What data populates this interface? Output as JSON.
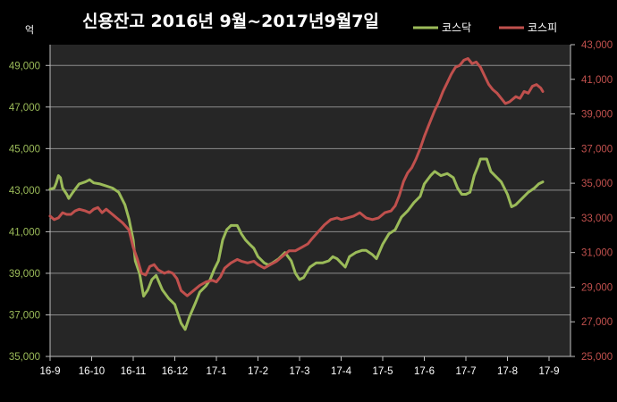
{
  "title": "신용잔고  2016년 9월~2017년9월7일",
  "chart_data": {
    "type": "line",
    "title": "신용잔고  2016년 9월~2017년9월7일",
    "unit_label": "억",
    "x_labels": [
      "16-9",
      "16-10",
      "16-11",
      "16-12",
      "17-1",
      "17-2",
      "17-3",
      "17-4",
      "17-5",
      "17-6",
      "17-7",
      "17-8",
      "17-9"
    ],
    "y_left": {
      "ticks": [
        "35,000",
        "37,000",
        "39,000",
        "41,000",
        "43,000",
        "45,000",
        "47,000",
        "49,000"
      ],
      "min": 35000,
      "max": 50000
    },
    "y_right": {
      "ticks": [
        "25,000",
        "27,000",
        "29,000",
        "31,000",
        "33,000",
        "35,000",
        "37,000",
        "39,000",
        "41,000",
        "43,000"
      ],
      "min": 25000,
      "max": 43000
    },
    "gridlines": true,
    "legend_position": "top-right",
    "series": [
      {
        "name": "코스닥",
        "axis": "left",
        "color": "#9bbb59",
        "points": [
          [
            0,
            43050
          ],
          [
            0.1,
            43100
          ],
          [
            0.15,
            43350
          ],
          [
            0.2,
            43700
          ],
          [
            0.25,
            43600
          ],
          [
            0.3,
            43100
          ],
          [
            0.4,
            42800
          ],
          [
            0.45,
            42600
          ],
          [
            0.55,
            42900
          ],
          [
            0.7,
            43300
          ],
          [
            0.85,
            43400
          ],
          [
            0.95,
            43500
          ],
          [
            1.05,
            43350
          ],
          [
            1.2,
            43300
          ],
          [
            1.35,
            43200
          ],
          [
            1.5,
            43100
          ],
          [
            1.65,
            42900
          ],
          [
            1.8,
            42300
          ],
          [
            1.9,
            41600
          ],
          [
            2.0,
            40600
          ],
          [
            2.05,
            39600
          ],
          [
            2.15,
            39000
          ],
          [
            2.25,
            37900
          ],
          [
            2.35,
            38200
          ],
          [
            2.45,
            38700
          ],
          [
            2.55,
            38900
          ],
          [
            2.7,
            38200
          ],
          [
            2.85,
            37800
          ],
          [
            3.0,
            37500
          ],
          [
            3.05,
            37200
          ],
          [
            3.15,
            36600
          ],
          [
            3.25,
            36300
          ],
          [
            3.35,
            36900
          ],
          [
            3.5,
            37600
          ],
          [
            3.6,
            38100
          ],
          [
            3.75,
            38400
          ],
          [
            3.85,
            38700
          ],
          [
            3.95,
            39200
          ],
          [
            4.05,
            39600
          ],
          [
            4.15,
            40600
          ],
          [
            4.25,
            41100
          ],
          [
            4.35,
            41300
          ],
          [
            4.5,
            41300
          ],
          [
            4.6,
            40900
          ],
          [
            4.7,
            40600
          ],
          [
            4.8,
            40400
          ],
          [
            4.9,
            40200
          ],
          [
            5.0,
            39800
          ],
          [
            5.15,
            39500
          ],
          [
            5.25,
            39400
          ],
          [
            5.35,
            39500
          ],
          [
            5.5,
            39700
          ],
          [
            5.65,
            40000
          ],
          [
            5.8,
            39600
          ],
          [
            5.9,
            39000
          ],
          [
            6.0,
            38700
          ],
          [
            6.1,
            38800
          ],
          [
            6.25,
            39300
          ],
          [
            6.4,
            39500
          ],
          [
            6.55,
            39500
          ],
          [
            6.7,
            39600
          ],
          [
            6.8,
            39800
          ],
          [
            6.9,
            39700
          ],
          [
            7.0,
            39500
          ],
          [
            7.1,
            39300
          ],
          [
            7.2,
            39800
          ],
          [
            7.35,
            40000
          ],
          [
            7.5,
            40100
          ],
          [
            7.6,
            40100
          ],
          [
            7.75,
            39900
          ],
          [
            7.85,
            39700
          ],
          [
            8.0,
            40400
          ],
          [
            8.15,
            40900
          ],
          [
            8.3,
            41100
          ],
          [
            8.45,
            41700
          ],
          [
            8.6,
            42000
          ],
          [
            8.75,
            42400
          ],
          [
            8.9,
            42700
          ],
          [
            9.0,
            43300
          ],
          [
            9.15,
            43700
          ],
          [
            9.25,
            43900
          ],
          [
            9.4,
            43700
          ],
          [
            9.55,
            43800
          ],
          [
            9.7,
            43600
          ],
          [
            9.8,
            43100
          ],
          [
            9.9,
            42800
          ],
          [
            10.0,
            42800
          ],
          [
            10.1,
            42900
          ],
          [
            10.2,
            43700
          ],
          [
            10.3,
            44200
          ],
          [
            10.35,
            44500
          ],
          [
            10.5,
            44500
          ],
          [
            10.6,
            43900
          ],
          [
            10.7,
            43700
          ],
          [
            10.85,
            43400
          ],
          [
            11.0,
            42800
          ],
          [
            11.1,
            42200
          ],
          [
            11.2,
            42300
          ],
          [
            11.35,
            42600
          ],
          [
            11.5,
            42900
          ],
          [
            11.65,
            43100
          ],
          [
            11.75,
            43300
          ],
          [
            11.85,
            43400
          ]
        ]
      },
      {
        "name": "코스피",
        "axis": "right",
        "color": "#c0504d",
        "points": [
          [
            0,
            33100
          ],
          [
            0.1,
            32900
          ],
          [
            0.2,
            33000
          ],
          [
            0.3,
            33300
          ],
          [
            0.4,
            33200
          ],
          [
            0.5,
            33200
          ],
          [
            0.6,
            33400
          ],
          [
            0.7,
            33500
          ],
          [
            0.85,
            33400
          ],
          [
            0.95,
            33300
          ],
          [
            1.05,
            33500
          ],
          [
            1.15,
            33600
          ],
          [
            1.25,
            33300
          ],
          [
            1.35,
            33500
          ],
          [
            1.5,
            33200
          ],
          [
            1.6,
            33000
          ],
          [
            1.75,
            32700
          ],
          [
            1.9,
            32300
          ],
          [
            2.0,
            31300
          ],
          [
            2.1,
            30600
          ],
          [
            2.2,
            29800
          ],
          [
            2.3,
            29700
          ],
          [
            2.4,
            30200
          ],
          [
            2.5,
            30300
          ],
          [
            2.6,
            30000
          ],
          [
            2.75,
            29800
          ],
          [
            2.85,
            29900
          ],
          [
            2.95,
            29800
          ],
          [
            3.05,
            29500
          ],
          [
            3.15,
            28800
          ],
          [
            3.3,
            28500
          ],
          [
            3.45,
            28800
          ],
          [
            3.6,
            29100
          ],
          [
            3.75,
            29300
          ],
          [
            3.9,
            29400
          ],
          [
            4.0,
            29300
          ],
          [
            4.1,
            29600
          ],
          [
            4.2,
            30100
          ],
          [
            4.35,
            30400
          ],
          [
            4.5,
            30600
          ],
          [
            4.6,
            30500
          ],
          [
            4.75,
            30400
          ],
          [
            4.9,
            30500
          ],
          [
            5.0,
            30300
          ],
          [
            5.15,
            30100
          ],
          [
            5.3,
            30300
          ],
          [
            5.45,
            30500
          ],
          [
            5.6,
            30800
          ],
          [
            5.75,
            31100
          ],
          [
            5.9,
            31100
          ],
          [
            6.05,
            31300
          ],
          [
            6.2,
            31500
          ],
          [
            6.3,
            31800
          ],
          [
            6.45,
            32200
          ],
          [
            6.6,
            32600
          ],
          [
            6.75,
            32900
          ],
          [
            6.9,
            33000
          ],
          [
            7.0,
            32900
          ],
          [
            7.15,
            33000
          ],
          [
            7.3,
            33100
          ],
          [
            7.45,
            33300
          ],
          [
            7.6,
            33000
          ],
          [
            7.75,
            32900
          ],
          [
            7.9,
            33000
          ],
          [
            8.05,
            33300
          ],
          [
            8.2,
            33400
          ],
          [
            8.3,
            33700
          ],
          [
            8.4,
            34300
          ],
          [
            8.5,
            35100
          ],
          [
            8.6,
            35600
          ],
          [
            8.7,
            35900
          ],
          [
            8.8,
            36400
          ],
          [
            8.9,
            37000
          ],
          [
            9.0,
            37700
          ],
          [
            9.1,
            38300
          ],
          [
            9.25,
            39200
          ],
          [
            9.35,
            39700
          ],
          [
            9.45,
            40300
          ],
          [
            9.55,
            40800
          ],
          [
            9.65,
            41300
          ],
          [
            9.75,
            41700
          ],
          [
            9.85,
            41800
          ],
          [
            9.95,
            42100
          ],
          [
            10.05,
            42200
          ],
          [
            10.15,
            41900
          ],
          [
            10.25,
            42000
          ],
          [
            10.35,
            41700
          ],
          [
            10.45,
            41200
          ],
          [
            10.55,
            40700
          ],
          [
            10.65,
            40400
          ],
          [
            10.75,
            40200
          ],
          [
            10.85,
            39900
          ],
          [
            10.95,
            39600
          ],
          [
            11.05,
            39700
          ],
          [
            11.2,
            40000
          ],
          [
            11.3,
            39900
          ],
          [
            11.4,
            40300
          ],
          [
            11.5,
            40200
          ],
          [
            11.6,
            40600
          ],
          [
            11.7,
            40700
          ],
          [
            11.8,
            40500
          ],
          [
            11.85,
            40300
          ]
        ]
      }
    ]
  }
}
